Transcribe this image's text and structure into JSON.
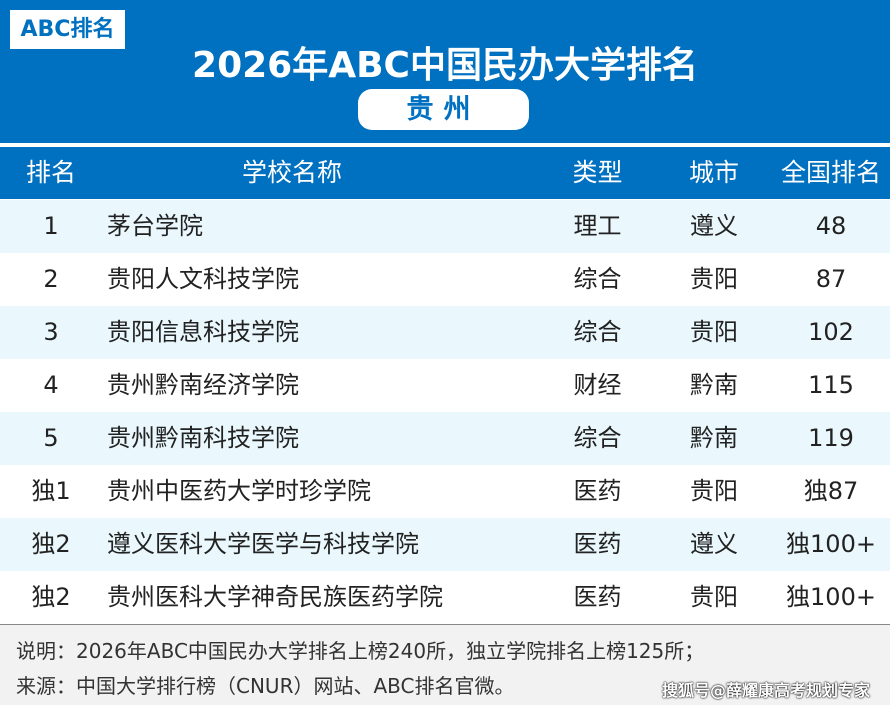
{
  "badge": "ABC排名",
  "title": "2026年ABC中国民办大学排名",
  "province": "贵州",
  "colors": {
    "primary": "#0070c0",
    "stripe": "#eaf8fd"
  },
  "headers": [
    "排名",
    "学校名称",
    "类型",
    "城市",
    "全国排名"
  ],
  "rows": [
    [
      "1",
      "茅台学院",
      "理工",
      "遵义",
      "48"
    ],
    [
      "2",
      "贵阳人文科技学院",
      "综合",
      "贵阳",
      "87"
    ],
    [
      "3",
      "贵阳信息科技学院",
      "综合",
      "贵阳",
      "102"
    ],
    [
      "4",
      "贵州黔南经济学院",
      "财经",
      "黔南",
      "115"
    ],
    [
      "5",
      "贵州黔南科技学院",
      "综合",
      "黔南",
      "119"
    ],
    [
      "独1",
      "贵州中医药大学时珍学院",
      "医药",
      "贵阳",
      "独87"
    ],
    [
      "独2",
      "遵义医科大学医学与科技学院",
      "医药",
      "遵义",
      "独100+"
    ],
    [
      "独2",
      "贵州医科大学神奇民族医药学院",
      "医药",
      "贵阳",
      "独100+"
    ]
  ],
  "footer": {
    "note": "说明：2026年ABC中国民办大学排名上榜240所，独立学院排名上榜125所；",
    "source": "来源：中国大学排行榜（CNUR）网站、ABC排名官微。",
    "watermark": "搜狐号@薛耀康高考规划专家"
  }
}
